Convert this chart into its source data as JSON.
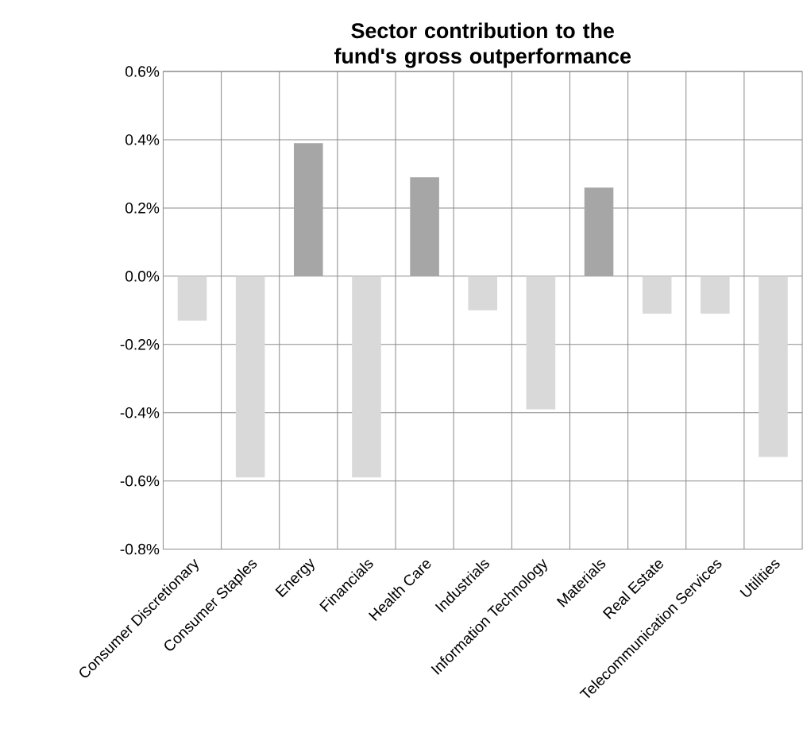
{
  "chart_data": {
    "type": "bar",
    "title": "Sector  contribution to the fund's gross outperformance",
    "categories": [
      "Consumer Discretionary",
      "Consumer Staples",
      "Energy",
      "Financials",
      "Health Care",
      "Industrials",
      "Information Technology",
      "Materials",
      "Real Estate",
      "Telecommunication Services",
      "Utilities"
    ],
    "values": [
      -0.13,
      -0.59,
      0.39,
      -0.59,
      0.29,
      -0.1,
      -0.39,
      0.26,
      -0.11,
      -0.11,
      -0.53
    ],
    "colors": [
      "#d9d9d9",
      "#d9d9d9",
      "#a6a6a6",
      "#d9d9d9",
      "#a6a6a6",
      "#d9d9d9",
      "#d9d9d9",
      "#a6a6a6",
      "#d9d9d9",
      "#d9d9d9",
      "#d9d9d9"
    ],
    "ylim": [
      -0.8,
      0.6
    ],
    "yticks": [
      {
        "value": -0.8,
        "label": "-0.8%"
      },
      {
        "value": -0.6,
        "label": "-0.6%"
      },
      {
        "value": -0.4,
        "label": "-0.4%"
      },
      {
        "value": -0.2,
        "label": "-0.2%"
      },
      {
        "value": 0.0,
        "label": "0.0%"
      },
      {
        "value": 0.2,
        "label": "0.2%"
      },
      {
        "value": 0.4,
        "label": "0.4%"
      },
      {
        "value": 0.6,
        "label": "0.6%"
      }
    ],
    "grid": true
  }
}
